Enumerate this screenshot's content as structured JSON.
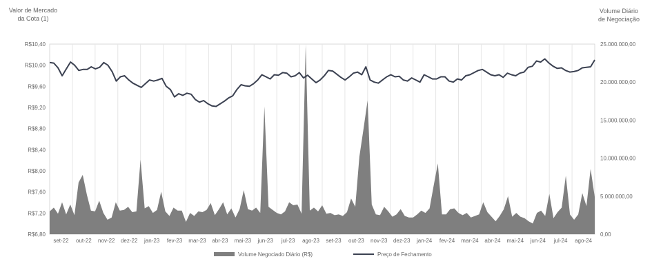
{
  "chart_data": {
    "type": "line",
    "left_axis_label": [
      "Valor de Mercado",
      "da Cota (1)"
    ],
    "right_axis_label": [
      "Volume Diário",
      "de Negociação"
    ],
    "left_ticks": [
      "R$10,40",
      "R$10,00",
      "R$9,60",
      "R$9,20",
      "R$8,80",
      "R$8,40",
      "R$8,00",
      "R$7,60",
      "R$7,20",
      "R$6,80"
    ],
    "left_ylim": [
      6.8,
      10.4
    ],
    "right_ticks": [
      "25.000.000,00",
      "20.000.000,00",
      "15.000.000,00",
      "10.000.000,00",
      "5.000.000,00",
      "0,00"
    ],
    "right_ylim": [
      0,
      25000000
    ],
    "x_ticks": [
      "set-22",
      "out-22",
      "nov-22",
      "dez-22",
      "jan-23",
      "fev-23",
      "mar-23",
      "abr-23",
      "mai-23",
      "jun-23",
      "jul-23",
      "ago-23",
      "set-23",
      "out-23",
      "nov-23",
      "dez-23",
      "jan-24",
      "fev-24",
      "mar-24",
      "abr-24",
      "mai-24",
      "jun-24",
      "jul-24",
      "ago-24"
    ],
    "series": [
      {
        "name": "Volume Negociado Diário (R$)",
        "kind": "area",
        "axis": "right",
        "color": "#7f7f7f",
        "values": [
          3000000,
          3500000,
          2700000,
          4200000,
          2600000,
          3900000,
          2500000,
          6800000,
          7800000,
          5200000,
          3100000,
          3000000,
          4400000,
          2800000,
          1900000,
          2200000,
          4200000,
          3100000,
          3200000,
          3600000,
          2900000,
          3000000,
          9800000,
          3400000,
          3700000,
          2800000,
          3200000,
          5600000,
          3000000,
          2400000,
          3500000,
          3100000,
          3100000,
          1600000,
          2800000,
          2400000,
          3000000,
          2900000,
          3200000,
          4100000,
          2500000,
          3300000,
          4200000,
          2600000,
          3400000,
          2200000,
          3300000,
          5800000,
          3300000,
          3100000,
          3500000,
          2800000,
          16800000,
          3600000,
          3200000,
          2800000,
          2600000,
          3000000,
          4200000,
          3800000,
          3900000,
          2700000,
          25100000,
          3100000,
          3500000,
          3000000,
          3800000,
          2700000,
          2800000,
          2500000,
          2600000,
          2400000,
          2900000,
          4700000,
          3600000,
          10200000,
          13800000,
          17600000,
          3900000,
          2600000,
          2500000,
          3600000,
          3000000,
          2300000,
          2600000,
          3300000,
          2400000,
          2200000,
          2200000,
          2600000,
          3100000,
          2800000,
          3400000,
          6400000,
          9300000,
          2600000,
          2600000,
          3300000,
          3400000,
          2800000,
          2500000,
          2800000,
          2200000,
          2400000,
          2600000,
          4200000,
          2900000,
          2300000,
          1700000,
          2400000,
          3300000,
          5000000,
          2300000,
          2800000,
          2300000,
          2100000,
          1700000,
          1400000,
          2800000,
          3100000,
          2400000,
          5300000,
          2100000,
          2900000,
          3500000,
          7700000,
          2600000,
          1900000,
          2600000,
          5400000,
          3700000,
          8600000,
          4900000
        ]
      },
      {
        "name": "Preço de Fechamento",
        "kind": "line",
        "axis": "left",
        "color": "#3b4151",
        "values": [
          10.05,
          10.04,
          9.95,
          9.8,
          9.93,
          10.06,
          10.0,
          9.9,
          9.92,
          9.92,
          9.97,
          9.93,
          9.96,
          10.05,
          10.0,
          9.88,
          9.7,
          9.78,
          9.8,
          9.72,
          9.66,
          9.62,
          9.58,
          9.65,
          9.72,
          9.7,
          9.72,
          9.75,
          9.6,
          9.54,
          9.4,
          9.46,
          9.43,
          9.47,
          9.45,
          9.35,
          9.3,
          9.33,
          9.27,
          9.23,
          9.22,
          9.27,
          9.32,
          9.38,
          9.42,
          9.54,
          9.63,
          9.61,
          9.6,
          9.65,
          9.72,
          9.82,
          9.78,
          9.74,
          9.82,
          9.81,
          9.86,
          9.85,
          9.78,
          9.8,
          9.86,
          9.76,
          9.81,
          9.74,
          9.67,
          9.72,
          9.8,
          9.9,
          9.89,
          9.83,
          9.77,
          9.72,
          9.78,
          9.85,
          9.87,
          9.82,
          9.97,
          9.72,
          9.68,
          9.66,
          9.72,
          9.78,
          9.82,
          9.78,
          9.79,
          9.72,
          9.7,
          9.76,
          9.72,
          9.68,
          9.82,
          9.78,
          9.74,
          9.74,
          9.78,
          9.78,
          9.7,
          9.68,
          9.74,
          9.72,
          9.8,
          9.82,
          9.86,
          9.9,
          9.92,
          9.87,
          9.82,
          9.8,
          9.82,
          9.77,
          9.85,
          9.82,
          9.8,
          9.85,
          9.87,
          9.96,
          9.98,
          10.08,
          10.06,
          10.12,
          10.04,
          9.98,
          9.94,
          9.95,
          9.9,
          9.87,
          9.88,
          9.9,
          9.95,
          9.96,
          9.97,
          10.1
        ]
      }
    ],
    "legend_position": "bottom-center",
    "grid": "vertical"
  }
}
